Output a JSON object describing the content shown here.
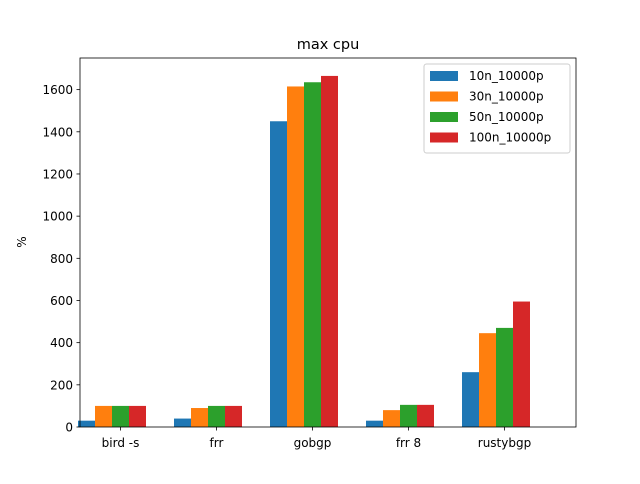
{
  "chart_data": {
    "type": "bar",
    "title": "max cpu",
    "xlabel": "",
    "ylabel": "%",
    "categories": [
      "bird -s",
      "frr",
      "gobgp",
      "frr 8",
      "rustybgp"
    ],
    "series": [
      {
        "name": "10n_10000p",
        "color": "#1f77b4",
        "values": [
          30,
          40,
          1450,
          30,
          260
        ]
      },
      {
        "name": "30n_10000p",
        "color": "#ff7f0e",
        "values": [
          100,
          90,
          1615,
          80,
          445
        ]
      },
      {
        "name": "50n_10000p",
        "color": "#2ca02c",
        "values": [
          100,
          100,
          1635,
          105,
          470
        ]
      },
      {
        "name": "100n_10000p",
        "color": "#d62728",
        "values": [
          100,
          100,
          1665,
          105,
          595
        ]
      }
    ],
    "ylim": [
      0,
      1750
    ],
    "yticks": [
      0,
      200,
      400,
      600,
      800,
      1000,
      1200,
      1400,
      1600
    ],
    "grid": false,
    "legend": "top-right"
  }
}
